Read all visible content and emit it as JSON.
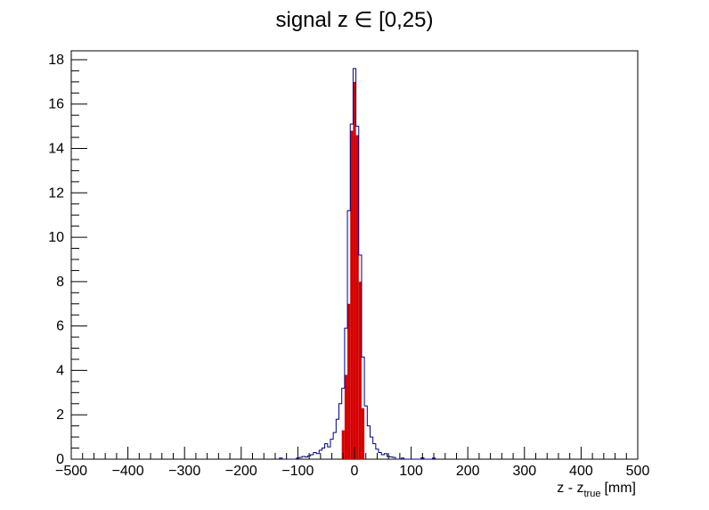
{
  "chart_data": {
    "type": "histogram",
    "title": "signal z ∈ [0,25)",
    "xlabel": {
      "base": "z - z",
      "subscript": "true",
      "unit": "[mm]"
    },
    "ylabel": "",
    "xlim": [
      -500,
      500
    ],
    "ylim": [
      0,
      18.4
    ],
    "grid": false,
    "x_ticks": [
      -500,
      -400,
      -300,
      -200,
      -100,
      0,
      100,
      200,
      300,
      400,
      500
    ],
    "x_tick_labels": [
      "−500",
      "−400",
      "−300",
      "−200",
      "−100",
      "0",
      "100",
      "200",
      "300",
      "400",
      "500"
    ],
    "y_ticks": [
      0,
      2,
      4,
      6,
      8,
      10,
      12,
      14,
      16,
      18
    ],
    "bin_width": 5,
    "series": [
      {
        "style": "filled-red",
        "color": "#d40000",
        "bins": [
          {
            "x": -20,
            "y": 1.3
          },
          {
            "x": -15,
            "y": 3.8
          },
          {
            "x": -10,
            "y": 7.0
          },
          {
            "x": -5,
            "y": 14.8
          },
          {
            "x": 0,
            "y": 17.0
          },
          {
            "x": 5,
            "y": 14.6
          },
          {
            "x": 10,
            "y": 8.0
          },
          {
            "x": 15,
            "y": 2.3
          }
        ]
      },
      {
        "style": "step-blue",
        "color": "#00008b",
        "bins": [
          {
            "x": -130,
            "y": 0.05
          },
          {
            "x": -100,
            "y": 0.05
          },
          {
            "x": -95,
            "y": 0.08
          },
          {
            "x": -90,
            "y": 0.12
          },
          {
            "x": -85,
            "y": 0.1
          },
          {
            "x": -80,
            "y": 0.15
          },
          {
            "x": -75,
            "y": 0.2
          },
          {
            "x": -70,
            "y": 0.3
          },
          {
            "x": -65,
            "y": 0.25
          },
          {
            "x": -60,
            "y": 0.4
          },
          {
            "x": -55,
            "y": 0.5
          },
          {
            "x": -50,
            "y": 0.7
          },
          {
            "x": -45,
            "y": 0.55
          },
          {
            "x": -40,
            "y": 0.9
          },
          {
            "x": -35,
            "y": 1.2
          },
          {
            "x": -30,
            "y": 1.8
          },
          {
            "x": -25,
            "y": 2.5
          },
          {
            "x": -20,
            "y": 3.2
          },
          {
            "x": -15,
            "y": 5.9
          },
          {
            "x": -10,
            "y": 11.2
          },
          {
            "x": -5,
            "y": 15.1
          },
          {
            "x": 0,
            "y": 17.6
          },
          {
            "x": 5,
            "y": 15.0
          },
          {
            "x": 10,
            "y": 9.2
          },
          {
            "x": 15,
            "y": 4.6
          },
          {
            "x": 20,
            "y": 2.4
          },
          {
            "x": 25,
            "y": 1.5
          },
          {
            "x": 30,
            "y": 1.0
          },
          {
            "x": 35,
            "y": 0.7
          },
          {
            "x": 40,
            "y": 0.45
          },
          {
            "x": 45,
            "y": 0.3
          },
          {
            "x": 50,
            "y": 0.2
          },
          {
            "x": 55,
            "y": 0.25
          },
          {
            "x": 60,
            "y": 0.12
          },
          {
            "x": 65,
            "y": 0.1
          },
          {
            "x": 70,
            "y": 0.08
          },
          {
            "x": 85,
            "y": 0.05
          },
          {
            "x": 120,
            "y": 0.06
          },
          {
            "x": 140,
            "y": 0.05
          }
        ]
      }
    ]
  }
}
